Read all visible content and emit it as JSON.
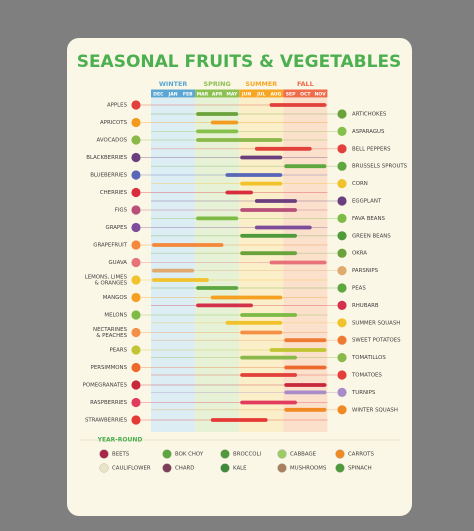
{
  "title": "SEASONAL FRUITS & VEGETABLES",
  "seasons": [
    {
      "name": "WINTER",
      "color": "#5aa7d6",
      "shade": "#dcedf3",
      "months": [
        "DEC",
        "JAN",
        "FEB"
      ]
    },
    {
      "name": "SPRING",
      "color": "#8cc152",
      "shade": "#e6f1d6",
      "months": [
        "MAR",
        "APR",
        "MAY"
      ]
    },
    {
      "name": "SUMMER",
      "color": "#f6a623",
      "shade": "#fbefc9",
      "months": [
        "JUN",
        "JUL",
        "AUG"
      ]
    },
    {
      "name": "FALL",
      "color": "#ef6b4a",
      "shade": "#fbe0cc",
      "months": [
        "SEP",
        "OCT",
        "NOV"
      ]
    }
  ],
  "fruits": [
    {
      "name": "APPLES",
      "start": 8,
      "end": 11,
      "color": "#e2403a"
    },
    {
      "name": "APRICOTS",
      "start": 4,
      "end": 5,
      "color": "#f39a1f"
    },
    {
      "name": "AVOCADOS",
      "start": 3,
      "end": 8,
      "color": "#8bb84a"
    },
    {
      "name": "BLACKBERRIES",
      "start": 6,
      "end": 8,
      "color": "#6b3f7e"
    },
    {
      "name": "BLUEBERRIES",
      "start": 5,
      "end": 8,
      "color": "#5a66b8"
    },
    {
      "name": "CHERRIES",
      "start": 5,
      "end": 6,
      "color": "#d92c3c"
    },
    {
      "name": "FIGS",
      "start": 6,
      "end": 9,
      "color": "#b8507a"
    },
    {
      "name": "GRAPES",
      "start": 7,
      "end": 10,
      "color": "#7d4c9a"
    },
    {
      "name": "GRAPEFRUIT",
      "start": 0,
      "end": 4,
      "color": "#f5883a"
    },
    {
      "name": "GUAVA",
      "start": 8,
      "end": 11,
      "color": "#e7727a"
    },
    {
      "name": [
        "LEMONS, LIMES",
        "& ORANGES"
      ],
      "start": 0,
      "end": 3,
      "color": "#f2c22c"
    },
    {
      "name": "MANGOS",
      "start": 4,
      "end": 8,
      "color": "#f5a020"
    },
    {
      "name": "MELONS",
      "start": 6,
      "end": 9,
      "color": "#7dbb45"
    },
    {
      "name": [
        "NECTARINES",
        "& PEACHES"
      ],
      "start": 6,
      "end": 8,
      "color": "#f39045"
    },
    {
      "name": "PEARS",
      "start": 8,
      "end": 11,
      "color": "#c2c532"
    },
    {
      "name": "PERSIMMONS",
      "start": 9,
      "end": 11,
      "color": "#ee6a2c"
    },
    {
      "name": "POMEGRANATES",
      "start": 9,
      "end": 11,
      "color": "#c8263a"
    },
    {
      "name": "RASPBERRIES",
      "start": 6,
      "end": 9,
      "color": "#e23c5c"
    },
    {
      "name": "STRAWBERRIES",
      "start": 4,
      "end": 7,
      "color": "#e53935"
    }
  ],
  "vegetables": [
    {
      "name": "ARTICHOKES",
      "start": 3,
      "end": 5,
      "color": "#6aa33c"
    },
    {
      "name": "ASPARAGUS",
      "start": 3,
      "end": 5,
      "color": "#86c04c"
    },
    {
      "name": "BELL PEPPERS",
      "start": 7,
      "end": 10,
      "color": "#e2403a"
    },
    {
      "name": "BRUSSELS SPROUTS",
      "start": 9,
      "end": 11,
      "color": "#5ea640"
    },
    {
      "name": "CORN",
      "start": 6,
      "end": 8,
      "color": "#f2c22c"
    },
    {
      "name": "EGGPLANT",
      "start": 7,
      "end": 9,
      "color": "#6b3f7e"
    },
    {
      "name": "FAVA BEANS",
      "start": 3,
      "end": 5,
      "color": "#7dbb45"
    },
    {
      "name": "GREEN BEANS",
      "start": 6,
      "end": 9,
      "color": "#4f9a3a"
    },
    {
      "name": "OKRA",
      "start": 6,
      "end": 9,
      "color": "#6aa33c"
    },
    {
      "name": "PARSNIPS",
      "start": 0,
      "end": 2,
      "color": "#e0a96d"
    },
    {
      "name": "PEAS",
      "start": 3,
      "end": 5,
      "color": "#5ea640"
    },
    {
      "name": "RHUBARB",
      "start": 3,
      "end": 6,
      "color": "#d4314a"
    },
    {
      "name": "SUMMER SQUASH",
      "start": 5,
      "end": 8,
      "color": "#f2c22c"
    },
    {
      "name": "SWEET POTATOES",
      "start": 9,
      "end": 11,
      "color": "#ee7a34"
    },
    {
      "name": "TOMATILLOS",
      "start": 6,
      "end": 9,
      "color": "#8bb84a"
    },
    {
      "name": "TOMATOES",
      "start": 6,
      "end": 9,
      "color": "#e2403a"
    },
    {
      "name": "TURNIPS",
      "start": 9,
      "end": 11,
      "color": "#a88cc8"
    },
    {
      "name": "WINTER SQUASH",
      "start": 9,
      "end": 11,
      "color": "#f08a24"
    }
  ],
  "year_round": {
    "title": "YEAR-ROUND",
    "items": [
      {
        "name": "BEETS",
        "color": "#a8284a"
      },
      {
        "name": "BOK CHOY",
        "color": "#5ea640"
      },
      {
        "name": "BROCCOLI",
        "color": "#4f9a3a"
      },
      {
        "name": "CABBAGE",
        "color": "#9ccc65"
      },
      {
        "name": "CARROTS",
        "color": "#f08a24"
      },
      {
        "name": "CAULIFLOWER",
        "color": "#e8e4c8"
      },
      {
        "name": "CHARD",
        "color": "#7b3f5a"
      },
      {
        "name": "KALE",
        "color": "#3f8a3a"
      },
      {
        "name": "MUSHROOMS",
        "color": "#a88060"
      },
      {
        "name": "SPINACH",
        "color": "#4f9a3a"
      }
    ]
  }
}
